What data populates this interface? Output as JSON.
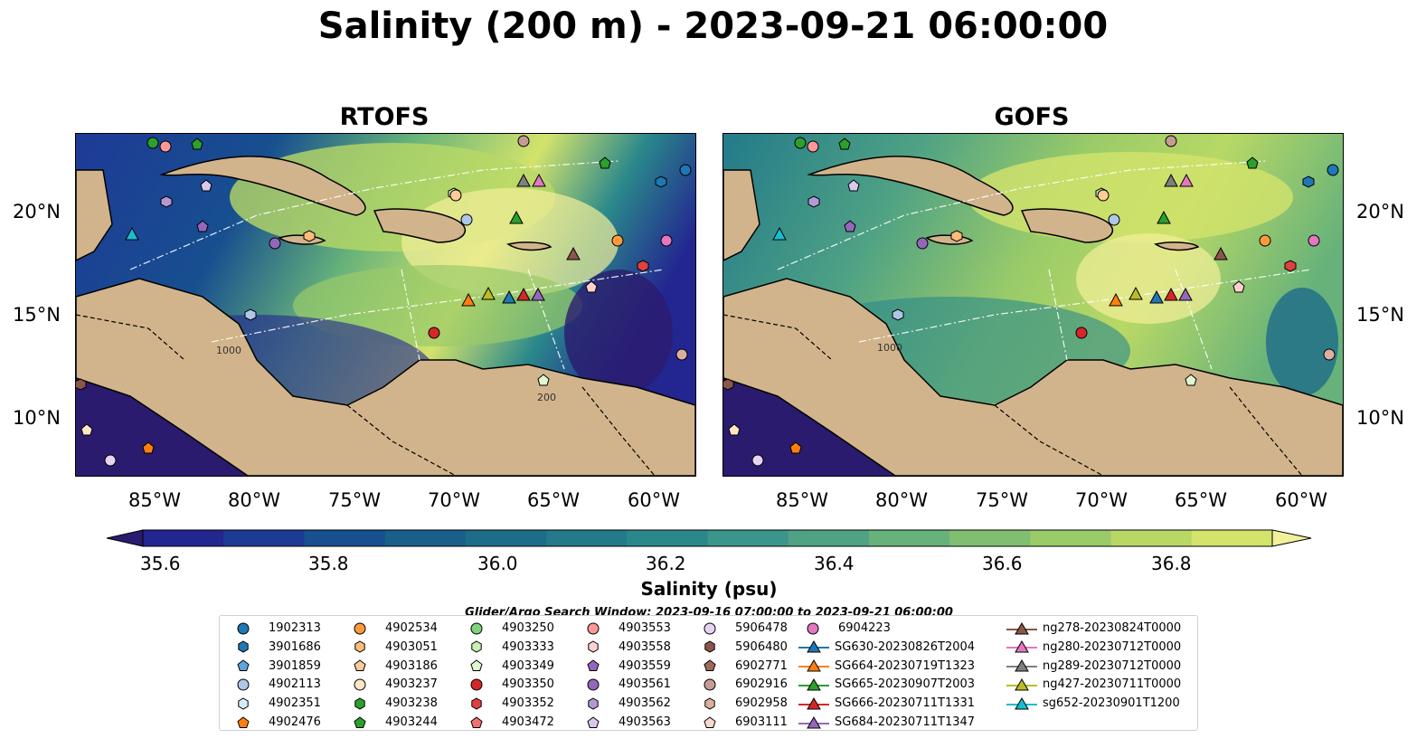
{
  "title": "Salinity (200 m) - 2023-09-21 06:00:00",
  "panels": [
    {
      "title": "RTOFS"
    },
    {
      "title": "GOFS"
    }
  ],
  "axes": {
    "lat_ticks": [
      "20°N",
      "15°N",
      "10°N"
    ],
    "lon_ticks": [
      "85°W",
      "80°W",
      "75°W",
      "70°W",
      "65°W",
      "60°W"
    ]
  },
  "colorbar": {
    "label": "Salinity (psu)",
    "ticks": [
      "35.6",
      "35.8",
      "36.0",
      "36.2",
      "36.4",
      "36.6",
      "36.8"
    ],
    "range": [
      35.55,
      36.95
    ],
    "colors": [
      "#2a1b6e",
      "#232590",
      "#1e3a97",
      "#174f8f",
      "#185f89",
      "#1d6c89",
      "#237a8a",
      "#2a888b",
      "#3a958a",
      "#4fa284",
      "#66b27a",
      "#7fbf6f",
      "#9acb69",
      "#b8d866",
      "#d3e36c",
      "#f3f09a"
    ]
  },
  "contour_labels": [
    "1000",
    "1000",
    "200"
  ],
  "search_window": "Glider/Argo Search Window: 2023-09-16 07:00:00 to 2023-09-21 06:00:00",
  "legend": [
    {
      "label": "1902313",
      "marker": "circle",
      "color": "#1f77b4"
    },
    {
      "label": "3901686",
      "marker": "hexagon",
      "color": "#1f77b4"
    },
    {
      "label": "3901859",
      "marker": "pentagon",
      "color": "#5da5da"
    },
    {
      "label": "4902113",
      "marker": "circle",
      "color": "#aec7e8"
    },
    {
      "label": "4902351",
      "marker": "hexagon",
      "color": "#d4ecfa"
    },
    {
      "label": "4902476",
      "marker": "pentagon",
      "color": "#ff7f0e"
    },
    {
      "label": "4902534",
      "marker": "circle",
      "color": "#ff9a3c"
    },
    {
      "label": "4903051",
      "marker": "hexagon",
      "color": "#ffbb78"
    },
    {
      "label": "4903186",
      "marker": "pentagon",
      "color": "#ffcc99"
    },
    {
      "label": "4903237",
      "marker": "circle",
      "color": "#ffe6c4"
    },
    {
      "label": "4903238",
      "marker": "hexagon",
      "color": "#2ca02c"
    },
    {
      "label": "4903244",
      "marker": "pentagon",
      "color": "#2ca02c"
    },
    {
      "label": "4903250",
      "marker": "circle",
      "color": "#7fd37f"
    },
    {
      "label": "4903333",
      "marker": "hexagon",
      "color": "#c7f0b5"
    },
    {
      "label": "4903349",
      "marker": "pentagon",
      "color": "#e0f8d0"
    },
    {
      "label": "4903350",
      "marker": "circle",
      "color": "#d62728"
    },
    {
      "label": "4903352",
      "marker": "hexagon",
      "color": "#e04040"
    },
    {
      "label": "4903472",
      "marker": "pentagon",
      "color": "#f27070"
    },
    {
      "label": "4903553",
      "marker": "circle",
      "color": "#ff9896"
    },
    {
      "label": "4903558",
      "marker": "hexagon",
      "color": "#ffd0cf"
    },
    {
      "label": "4903559",
      "marker": "pentagon",
      "color": "#9467bd"
    },
    {
      "label": "4903561",
      "marker": "circle",
      "color": "#9467bd"
    },
    {
      "label": "4903562",
      "marker": "hexagon",
      "color": "#b399d4"
    },
    {
      "label": "4903563",
      "marker": "pentagon",
      "color": "#d9c8ec"
    },
    {
      "label": "5906478",
      "marker": "circle",
      "color": "#e7d4f5"
    },
    {
      "label": "5906480",
      "marker": "hexagon",
      "color": "#8c564b"
    },
    {
      "label": "6902771",
      "marker": "pentagon",
      "color": "#a0695c"
    },
    {
      "label": "6902916",
      "marker": "circle",
      "color": "#c49c94"
    },
    {
      "label": "6902958",
      "marker": "hexagon",
      "color": "#dbb0a0"
    },
    {
      "label": "6903111",
      "marker": "pentagon",
      "color": "#f8d9cf"
    },
    {
      "label": "6904223",
      "marker": "circle",
      "color": "#e377c2"
    },
    {
      "label": "SG630-20230826T2004",
      "marker": "triangle",
      "color": "#1f77b4"
    },
    {
      "label": "SG664-20230719T1323",
      "marker": "triangle",
      "color": "#ff7f0e"
    },
    {
      "label": "SG665-20230907T2003",
      "marker": "triangle",
      "color": "#2ca02c"
    },
    {
      "label": "SG666-20230711T1331",
      "marker": "triangle",
      "color": "#d62728"
    },
    {
      "label": "SG684-20230711T1347",
      "marker": "triangle",
      "color": "#9467bd"
    },
    {
      "label": "ng278-20230824T0000",
      "marker": "triangle",
      "color": "#8c564b"
    },
    {
      "label": "ng280-20230712T0000",
      "marker": "triangle",
      "color": "#e377c2"
    },
    {
      "label": "ng289-20230712T0000",
      "marker": "triangle",
      "color": "#7f7f7f"
    },
    {
      "label": "ng427-20230711T0000",
      "marker": "triangle",
      "color": "#bcbd22"
    },
    {
      "label": "sg652-20230901T1200",
      "marker": "triangle",
      "color": "#17becf"
    }
  ],
  "colors": {
    "land": "#d2b48c",
    "shelf": "#9bb7e0",
    "coast": "#000000"
  }
}
